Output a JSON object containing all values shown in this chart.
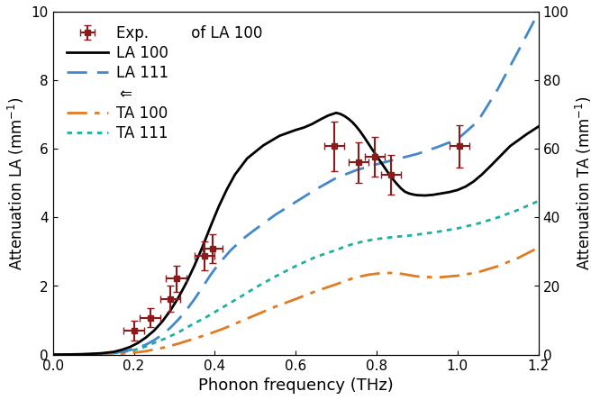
{
  "title": "",
  "xlabel": "Phonon frequency (THz)",
  "ylabel_left": "Attenuation LA (mm$^{-1}$)",
  "ylabel_right": "Attenuation TA (mm$^{-1}$)",
  "xlim": [
    0,
    1.2
  ],
  "ylim_left": [
    0,
    10
  ],
  "ylim_right": [
    0,
    100
  ],
  "background_color": "#ffffff",
  "exp_x": [
    0.2,
    0.24,
    0.29,
    0.305,
    0.375,
    0.395,
    0.695,
    0.755,
    0.795,
    0.835,
    1.005
  ],
  "exp_y": [
    0.7,
    1.08,
    1.62,
    2.22,
    2.88,
    3.08,
    6.08,
    5.6,
    5.78,
    5.25,
    6.08
  ],
  "exp_yerr": [
    0.28,
    0.28,
    0.38,
    0.38,
    0.42,
    0.42,
    0.72,
    0.58,
    0.58,
    0.58,
    0.62
  ],
  "exp_xerr": [
    0.025,
    0.025,
    0.025,
    0.025,
    0.025,
    0.025,
    0.025,
    0.025,
    0.025,
    0.025,
    0.025
  ],
  "LA100_color": "#000000",
  "LA111_color": "#4488cc",
  "TA100_color": "#e07b22",
  "TA111_color": "#20b0a0",
  "exp_color": "#8b1a1a",
  "la100_x": [
    0.0,
    0.04,
    0.08,
    0.12,
    0.15,
    0.17,
    0.19,
    0.21,
    0.23,
    0.25,
    0.27,
    0.29,
    0.31,
    0.33,
    0.35,
    0.37,
    0.39,
    0.41,
    0.43,
    0.45,
    0.48,
    0.52,
    0.56,
    0.6,
    0.62,
    0.64,
    0.66,
    0.68,
    0.7,
    0.71,
    0.72,
    0.73,
    0.74,
    0.75,
    0.76,
    0.77,
    0.78,
    0.79,
    0.8,
    0.81,
    0.82,
    0.83,
    0.84,
    0.85,
    0.86,
    0.87,
    0.88,
    0.89,
    0.9,
    0.92,
    0.94,
    0.96,
    0.98,
    1.0,
    1.02,
    1.04,
    1.06,
    1.08,
    1.1,
    1.13,
    1.17,
    1.2
  ],
  "la100_y": [
    0.0,
    0.005,
    0.015,
    0.04,
    0.08,
    0.14,
    0.22,
    0.34,
    0.5,
    0.7,
    0.96,
    1.28,
    1.66,
    2.1,
    2.6,
    3.15,
    3.75,
    4.32,
    4.82,
    5.25,
    5.72,
    6.1,
    6.38,
    6.55,
    6.62,
    6.72,
    6.85,
    6.97,
    7.05,
    7.02,
    6.96,
    6.88,
    6.78,
    6.65,
    6.5,
    6.33,
    6.15,
    5.97,
    5.8,
    5.62,
    5.45,
    5.28,
    5.12,
    4.98,
    4.85,
    4.75,
    4.7,
    4.67,
    4.65,
    4.64,
    4.66,
    4.7,
    4.74,
    4.8,
    4.9,
    5.05,
    5.25,
    5.48,
    5.72,
    6.08,
    6.42,
    6.65
  ],
  "la111_x": [
    0.0,
    0.05,
    0.1,
    0.14,
    0.17,
    0.19,
    0.21,
    0.23,
    0.25,
    0.27,
    0.29,
    0.31,
    0.33,
    0.35,
    0.37,
    0.39,
    0.41,
    0.44,
    0.47,
    0.5,
    0.55,
    0.6,
    0.65,
    0.7,
    0.75,
    0.8,
    0.85,
    0.9,
    0.95,
    1.0,
    1.05,
    1.1,
    1.15,
    1.2
  ],
  "la111_y": [
    0.0,
    0.005,
    0.015,
    0.04,
    0.08,
    0.13,
    0.2,
    0.29,
    0.42,
    0.58,
    0.78,
    1.02,
    1.3,
    1.62,
    1.97,
    2.33,
    2.65,
    3.05,
    3.38,
    3.65,
    4.08,
    4.45,
    4.82,
    5.15,
    5.38,
    5.55,
    5.7,
    5.85,
    6.05,
    6.28,
    6.8,
    7.75,
    8.85,
    9.97
  ],
  "ta100_x": [
    0.0,
    0.06,
    0.1,
    0.14,
    0.17,
    0.19,
    0.21,
    0.23,
    0.25,
    0.28,
    0.31,
    0.34,
    0.38,
    0.42,
    0.46,
    0.5,
    0.55,
    0.6,
    0.65,
    0.7,
    0.72,
    0.74,
    0.76,
    0.78,
    0.8,
    0.82,
    0.84,
    0.86,
    0.88,
    0.9,
    0.95,
    1.0,
    1.05,
    1.1,
    1.15,
    1.2
  ],
  "ta100_y": [
    0.0,
    0.005,
    0.01,
    0.02,
    0.03,
    0.05,
    0.07,
    0.1,
    0.15,
    0.22,
    0.32,
    0.43,
    0.58,
    0.75,
    0.95,
    1.15,
    1.4,
    1.62,
    1.85,
    2.05,
    2.14,
    2.22,
    2.28,
    2.33,
    2.36,
    2.38,
    2.38,
    2.36,
    2.32,
    2.28,
    2.25,
    2.3,
    2.4,
    2.58,
    2.82,
    3.12
  ],
  "ta111_x": [
    0.0,
    0.05,
    0.09,
    0.12,
    0.15,
    0.17,
    0.19,
    0.21,
    0.23,
    0.25,
    0.28,
    0.31,
    0.34,
    0.38,
    0.42,
    0.46,
    0.5,
    0.55,
    0.6,
    0.65,
    0.7,
    0.72,
    0.74,
    0.76,
    0.78,
    0.8,
    0.82,
    0.85,
    0.88,
    0.9,
    0.95,
    1.0,
    1.05,
    1.1,
    1.15,
    1.2
  ],
  "ta111_y": [
    0.0,
    0.005,
    0.01,
    0.02,
    0.04,
    0.07,
    0.11,
    0.16,
    0.24,
    0.34,
    0.48,
    0.65,
    0.85,
    1.1,
    1.38,
    1.66,
    1.95,
    2.28,
    2.58,
    2.85,
    3.05,
    3.14,
    3.22,
    3.28,
    3.33,
    3.37,
    3.4,
    3.44,
    3.47,
    3.5,
    3.58,
    3.68,
    3.82,
    4.0,
    4.22,
    4.48
  ]
}
